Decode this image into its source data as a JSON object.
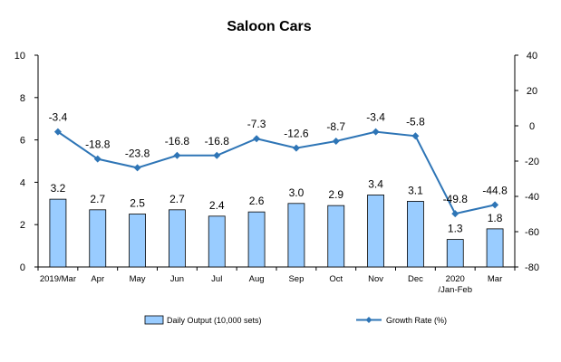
{
  "chart_data": {
    "type": "bar+line",
    "title": "Saloon Cars",
    "categories": [
      "2019/Mar",
      "Apr",
      "May",
      "Jun",
      "Jul",
      "Aug",
      "Sep",
      "Oct",
      "Nov",
      "Dec",
      [
        "2020",
        "/Jan-Feb"
      ],
      "Mar"
    ],
    "series": [
      {
        "name": "Daily Output (10,000 sets)",
        "type": "bar",
        "axis": "left",
        "values": [
          3.2,
          2.7,
          2.5,
          2.7,
          2.4,
          2.6,
          3.0,
          2.9,
          3.4,
          3.1,
          1.3,
          1.8
        ],
        "labels": [
          "3.2",
          "2.7",
          "2.5",
          "2.7",
          "2.4",
          "2.6",
          "3.0",
          "2.9",
          "3.4",
          "3.1",
          "1.3",
          "1.8"
        ],
        "color": "#99CCFF"
      },
      {
        "name": "Growth Rate (%)",
        "type": "line",
        "axis": "right",
        "values": [
          -3.4,
          -18.8,
          -23.8,
          -16.8,
          -16.8,
          -7.3,
          -12.6,
          -8.7,
          -3.4,
          -5.8,
          -49.8,
          -44.8
        ],
        "labels": [
          "-3.4",
          "-18.8",
          "-23.8",
          "-16.8",
          "-16.8",
          "-7.3",
          "-12.6",
          "-8.7",
          "-3.4",
          "-5.8",
          "-49.8",
          "-44.8"
        ],
        "color": "#2E75B6"
      }
    ],
    "y_left": {
      "ylim": [
        0,
        10
      ],
      "ticks": [
        0,
        2,
        4,
        6,
        8,
        10
      ]
    },
    "y_right": {
      "ylim": [
        -80,
        40
      ],
      "ticks": [
        -80,
        -60,
        -40,
        -20,
        0,
        20,
        40
      ]
    },
    "grid": false,
    "legend_position": "bottom"
  }
}
